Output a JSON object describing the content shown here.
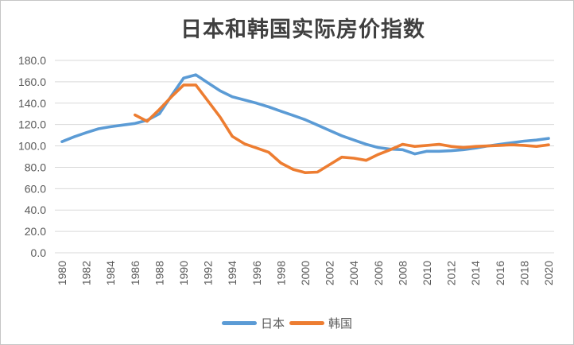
{
  "chart_data": {
    "type": "line",
    "title": "日本和韩国实际房价指数",
    "grid": true,
    "legend_position": "bottom",
    "ylim": [
      0,
      180
    ],
    "y_ticks": [
      0,
      20,
      40,
      60,
      80,
      100,
      120,
      140,
      160,
      180
    ],
    "y_tick_labels": [
      "0.0",
      "20.0",
      "40.0",
      "60.0",
      "80.0",
      "100.0",
      "120.0",
      "140.0",
      "160.0",
      "180.0"
    ],
    "x_tick_years": [
      1980,
      1982,
      1984,
      1986,
      1988,
      1990,
      1992,
      1994,
      1996,
      1998,
      2000,
      2002,
      2004,
      2006,
      2008,
      2010,
      2012,
      2014,
      2016,
      2018,
      2020
    ],
    "x": [
      1980,
      1981,
      1982,
      1983,
      1984,
      1985,
      1986,
      1987,
      1988,
      1989,
      1990,
      1991,
      1992,
      1993,
      1994,
      1995,
      1996,
      1997,
      1998,
      1999,
      2000,
      2001,
      2002,
      2003,
      2004,
      2005,
      2006,
      2007,
      2008,
      2009,
      2010,
      2011,
      2012,
      2013,
      2014,
      2015,
      2016,
      2017,
      2018,
      2019,
      2020
    ],
    "series": [
      {
        "name": "日本",
        "color": "#5B9BD5",
        "values": [
          104,
          108.5,
          112.5,
          116,
          118,
          119.5,
          121,
          124,
          130,
          147,
          163.5,
          166.5,
          159,
          151.5,
          146,
          143,
          140,
          136.5,
          132.5,
          128.5,
          124.5,
          119.5,
          114.5,
          109.5,
          105.5,
          101.5,
          98.5,
          97,
          96.5,
          92.5,
          95,
          95,
          95.5,
          96.5,
          98,
          100,
          101.5,
          103,
          104.5,
          105.5,
          107
        ]
      },
      {
        "name": "韩国",
        "color": "#ED7D31",
        "values": [
          null,
          null,
          null,
          null,
          null,
          null,
          129,
          123,
          134,
          146,
          157,
          157,
          142,
          127,
          109,
          102,
          98,
          94,
          84,
          78,
          75,
          75.5,
          82.5,
          89.5,
          88.5,
          86.5,
          92,
          96.5,
          101.5,
          99.5,
          100.5,
          101.5,
          99.5,
          98.5,
          99.5,
          100,
          100.5,
          101,
          100.5,
          99.5,
          101
        ]
      }
    ],
    "colors": {
      "gridline": "#D9D9D9",
      "axis_text": "#595959",
      "title_text": "#404040"
    }
  }
}
